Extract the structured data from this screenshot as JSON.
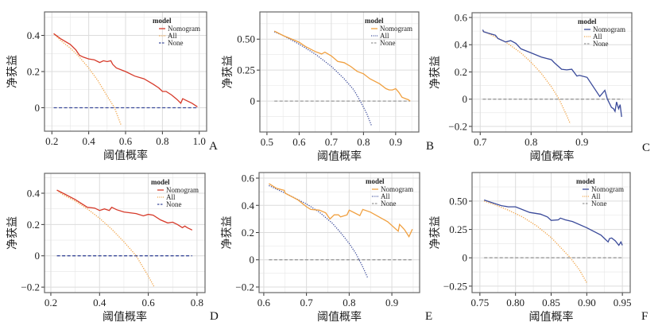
{
  "colors": {
    "red": "#d63a2a",
    "orange": "#f0a040",
    "navy": "#3a4a9a",
    "gray": "#999999",
    "grid": "#e6e6e6",
    "frame": "#666666"
  },
  "chart_data": [
    {
      "panel": "A",
      "type": "line",
      "xlabel": "阈值概率",
      "ylabel": "净获益",
      "legend_title": "model",
      "legend_position": "top-right",
      "xlim": [
        0.16,
        1.04
      ],
      "ylim": [
        -0.13,
        0.53
      ],
      "xticks": [
        0.2,
        0.4,
        0.6,
        0.8,
        1.0
      ],
      "xtick_labels": [
        "0.2",
        "0.4",
        "0.6",
        "0.8",
        "1.0"
      ],
      "yticks": [
        0,
        0.2,
        0.4
      ],
      "ytick_labels": [
        "0",
        "0.2",
        "0.4"
      ],
      "series": [
        {
          "name": "Nomogram",
          "style": "solid",
          "color": "red",
          "x": [
            0.21,
            0.25,
            0.3,
            0.33,
            0.35,
            0.37,
            0.4,
            0.43,
            0.45,
            0.46,
            0.48,
            0.5,
            0.52,
            0.53,
            0.55,
            0.6,
            0.65,
            0.7,
            0.75,
            0.78,
            0.8,
            0.82,
            0.85,
            0.88,
            0.9,
            0.91,
            0.93,
            0.96,
            0.99
          ],
          "y": [
            0.41,
            0.38,
            0.35,
            0.32,
            0.29,
            0.28,
            0.27,
            0.265,
            0.255,
            0.25,
            0.26,
            0.255,
            0.26,
            0.24,
            0.22,
            0.2,
            0.175,
            0.16,
            0.13,
            0.11,
            0.09,
            0.09,
            0.07,
            0.045,
            0.025,
            0.05,
            0.04,
            0.025,
            0.005
          ]
        },
        {
          "name": "All",
          "style": "dotted",
          "color": "orange",
          "x": [
            0.21,
            0.25,
            0.3,
            0.35,
            0.4,
            0.45,
            0.5,
            0.54,
            0.575
          ],
          "y": [
            0.41,
            0.37,
            0.33,
            0.28,
            0.22,
            0.15,
            0.065,
            0.0,
            -0.095
          ]
        },
        {
          "name": "None",
          "style": "dashed",
          "color": "navy",
          "x": [
            0.21,
            0.99
          ],
          "y": [
            0,
            0
          ]
        }
      ]
    },
    {
      "panel": "B",
      "type": "line",
      "xlabel": "阈值概率",
      "ylabel": "净获益",
      "legend_title": "model",
      "legend_position": "top-right",
      "xlim": [
        0.478,
        0.972
      ],
      "ylim": [
        -0.25,
        0.72
      ],
      "xticks": [
        0.5,
        0.6,
        0.7,
        0.8,
        0.9
      ],
      "xtick_labels": [
        "0.5",
        "0.6",
        "0.7",
        "0.8",
        "0.9"
      ],
      "yticks": [
        0,
        0.25,
        0.5
      ],
      "ytick_labels": [
        "0",
        "0.25",
        "0.50"
      ],
      "series": [
        {
          "name": "Nomogram",
          "style": "solid",
          "color": "orange",
          "x": [
            0.523,
            0.55,
            0.6,
            0.62,
            0.65,
            0.67,
            0.68,
            0.7,
            0.72,
            0.74,
            0.76,
            0.78,
            0.8,
            0.82,
            0.85,
            0.87,
            0.88,
            0.89,
            0.9,
            0.91,
            0.92,
            0.93,
            0.94,
            0.945
          ],
          "y": [
            0.565,
            0.53,
            0.475,
            0.44,
            0.4,
            0.38,
            0.395,
            0.365,
            0.32,
            0.31,
            0.28,
            0.24,
            0.22,
            0.18,
            0.14,
            0.1,
            0.09,
            0.09,
            0.1,
            0.07,
            0.03,
            0.02,
            0.01,
            0.0
          ]
        },
        {
          "name": "All",
          "style": "dotted",
          "color": "navy",
          "x": [
            0.523,
            0.55,
            0.6,
            0.65,
            0.7,
            0.74,
            0.77,
            0.79,
            0.81,
            0.825
          ],
          "y": [
            0.56,
            0.53,
            0.46,
            0.38,
            0.28,
            0.18,
            0.09,
            0.0,
            -0.1,
            -0.2
          ]
        },
        {
          "name": "None",
          "style": "dashed",
          "color": "gray",
          "x": [
            0.523,
            0.945
          ],
          "y": [
            0,
            0
          ]
        }
      ]
    },
    {
      "panel": "C",
      "type": "line",
      "xlabel": "阈值概率",
      "ylabel": "净获益",
      "legend_title": "model",
      "legend_position": "top-right",
      "xlim": [
        0.684,
        0.998
      ],
      "ylim": [
        -0.241,
        0.635
      ],
      "xticks": [
        0.7,
        0.8,
        0.9
      ],
      "xtick_labels": [
        "0.7",
        "0.8",
        "0.9"
      ],
      "yticks": [
        -0.2,
        0,
        0.2,
        0.4,
        0.6
      ],
      "ytick_labels": [
        "−0.2",
        "0",
        "0.2",
        "0.4",
        "0.6"
      ],
      "series": [
        {
          "name": "Nomogram",
          "style": "solid",
          "color": "navy",
          "x": [
            0.705,
            0.707,
            0.72,
            0.73,
            0.735,
            0.75,
            0.76,
            0.77,
            0.78,
            0.8,
            0.82,
            0.84,
            0.845,
            0.86,
            0.87,
            0.88,
            0.89,
            0.895,
            0.91,
            0.935,
            0.945,
            0.95,
            0.958,
            0.962,
            0.965,
            0.968,
            0.972,
            0.975,
            0.978
          ],
          "y": [
            0.51,
            0.495,
            0.48,
            0.47,
            0.445,
            0.42,
            0.43,
            0.41,
            0.37,
            0.34,
            0.31,
            0.29,
            0.27,
            0.22,
            0.215,
            0.22,
            0.17,
            0.175,
            0.16,
            0.02,
            0.065,
            0.0,
            -0.06,
            -0.07,
            -0.09,
            -0.02,
            -0.07,
            -0.04,
            -0.13
          ]
        },
        {
          "name": "All",
          "style": "dotted",
          "color": "orange",
          "x": [
            0.705,
            0.72,
            0.75,
            0.78,
            0.8,
            0.82,
            0.84,
            0.855,
            0.87,
            0.877
          ],
          "y": [
            0.5,
            0.475,
            0.42,
            0.34,
            0.27,
            0.19,
            0.09,
            0.0,
            -0.12,
            -0.18
          ]
        },
        {
          "name": "None",
          "style": "dashed",
          "color": "gray",
          "x": [
            0.705,
            0.98
          ],
          "y": [
            0,
            0
          ]
        }
      ]
    },
    {
      "panel": "D",
      "type": "line",
      "xlabel": "阈值概率",
      "ylabel": "净获益",
      "legend_title": "model",
      "legend_position": "top-right",
      "xlim": [
        0.174,
        0.833
      ],
      "ylim": [
        -0.235,
        0.527
      ],
      "xticks": [
        0.2,
        0.4,
        0.6,
        0.8
      ],
      "xtick_labels": [
        "0.2",
        "0.4",
        "0.6",
        "0.8"
      ],
      "yticks": [
        -0.2,
        0,
        0.2,
        0.4
      ],
      "ytick_labels": [
        "−0.2",
        "0",
        "0.2",
        "0.4"
      ],
      "series": [
        {
          "name": "Nomogram",
          "style": "solid",
          "color": "red",
          "x": [
            0.225,
            0.25,
            0.3,
            0.33,
            0.35,
            0.38,
            0.4,
            0.42,
            0.44,
            0.45,
            0.47,
            0.5,
            0.55,
            0.58,
            0.6,
            0.62,
            0.65,
            0.68,
            0.7,
            0.72,
            0.74,
            0.75,
            0.76,
            0.78
          ],
          "y": [
            0.42,
            0.4,
            0.36,
            0.33,
            0.31,
            0.305,
            0.29,
            0.3,
            0.29,
            0.31,
            0.295,
            0.28,
            0.27,
            0.255,
            0.265,
            0.26,
            0.23,
            0.21,
            0.215,
            0.2,
            0.18,
            0.19,
            0.18,
            0.165
          ]
        },
        {
          "name": "All",
          "style": "dotted",
          "color": "orange",
          "x": [
            0.225,
            0.25,
            0.3,
            0.35,
            0.4,
            0.45,
            0.5,
            0.55,
            0.6,
            0.625
          ],
          "y": [
            0.42,
            0.39,
            0.35,
            0.3,
            0.24,
            0.17,
            0.09,
            0.0,
            -0.13,
            -0.2
          ]
        },
        {
          "name": "None",
          "style": "dashed",
          "color": "navy",
          "x": [
            0.225,
            0.78
          ],
          "y": [
            0,
            0
          ]
        }
      ]
    },
    {
      "panel": "E",
      "type": "line",
      "xlabel": "阈值概率",
      "ylabel": "净获益",
      "legend_title": "model",
      "legend_position": "top-right",
      "xlim": [
        0.589,
        0.965
      ],
      "ylim": [
        -0.241,
        0.641
      ],
      "xticks": [
        0.6,
        0.7,
        0.8,
        0.9
      ],
      "xtick_labels": [
        "0.6",
        "0.7",
        "0.8",
        "0.9"
      ],
      "yticks": [
        -0.2,
        0,
        0.2,
        0.4,
        0.6
      ],
      "ytick_labels": [
        "−0.2",
        "0",
        "0.2",
        "0.4",
        "0.6"
      ],
      "series": [
        {
          "name": "Nomogram",
          "style": "solid",
          "color": "orange",
          "x": [
            0.612,
            0.63,
            0.648,
            0.65,
            0.68,
            0.7,
            0.71,
            0.73,
            0.745,
            0.755,
            0.765,
            0.775,
            0.78,
            0.795,
            0.8,
            0.825,
            0.832,
            0.85,
            0.89,
            0.915,
            0.918,
            0.93,
            0.94,
            0.948
          ],
          "y": [
            0.56,
            0.525,
            0.51,
            0.49,
            0.44,
            0.39,
            0.37,
            0.365,
            0.345,
            0.3,
            0.33,
            0.33,
            0.315,
            0.33,
            0.365,
            0.325,
            0.37,
            0.35,
            0.28,
            0.21,
            0.26,
            0.22,
            0.17,
            0.225
          ]
        },
        {
          "name": "All",
          "style": "dotted",
          "color": "navy",
          "x": [
            0.612,
            0.65,
            0.7,
            0.73,
            0.76,
            0.78,
            0.8,
            0.815,
            0.83,
            0.843
          ],
          "y": [
            0.545,
            0.49,
            0.41,
            0.35,
            0.27,
            0.2,
            0.12,
            0.05,
            -0.04,
            -0.13
          ]
        },
        {
          "name": "None",
          "style": "dashed",
          "color": "gray",
          "x": [
            0.612,
            0.948
          ],
          "y": [
            0,
            0
          ]
        }
      ]
    },
    {
      "panel": "F",
      "type": "line",
      "xlabel": "阈值概率",
      "ylabel": "净获益",
      "legend_title": "model",
      "legend_position": "top-right",
      "xlim": [
        0.739,
        0.961
      ],
      "ylim": [
        -0.307,
        0.752
      ],
      "xticks": [
        0.75,
        0.8,
        0.85,
        0.9,
        0.95
      ],
      "xtick_labels": [
        "0.75",
        "0.80",
        "0.85",
        "0.90",
        "0.95"
      ],
      "yticks": [
        -0.25,
        0,
        0.25,
        0.5
      ],
      "ytick_labels": [
        "−0.25",
        "0",
        "0.25",
        "0.50"
      ],
      "series": [
        {
          "name": "Nomogram",
          "style": "solid",
          "color": "navy",
          "x": [
            0.756,
            0.77,
            0.78,
            0.79,
            0.8,
            0.82,
            0.835,
            0.845,
            0.85,
            0.86,
            0.863,
            0.87,
            0.88,
            0.9,
            0.92,
            0.93,
            0.932,
            0.935,
            0.94,
            0.945,
            0.948,
            0.95
          ],
          "y": [
            0.51,
            0.48,
            0.46,
            0.45,
            0.45,
            0.4,
            0.385,
            0.36,
            0.33,
            0.335,
            0.35,
            0.335,
            0.32,
            0.265,
            0.2,
            0.14,
            0.17,
            0.175,
            0.15,
            0.11,
            0.14,
            0.11
          ]
        },
        {
          "name": "All",
          "style": "dotted",
          "color": "orange",
          "x": [
            0.756,
            0.77,
            0.79,
            0.81,
            0.83,
            0.85,
            0.865,
            0.877,
            0.89,
            0.9
          ],
          "y": [
            0.5,
            0.47,
            0.42,
            0.36,
            0.28,
            0.18,
            0.08,
            0.0,
            -0.11,
            -0.22
          ]
        },
        {
          "name": "None",
          "style": "dashed",
          "color": "gray",
          "x": [
            0.756,
            0.95
          ],
          "y": [
            0,
            0
          ]
        }
      ]
    }
  ]
}
